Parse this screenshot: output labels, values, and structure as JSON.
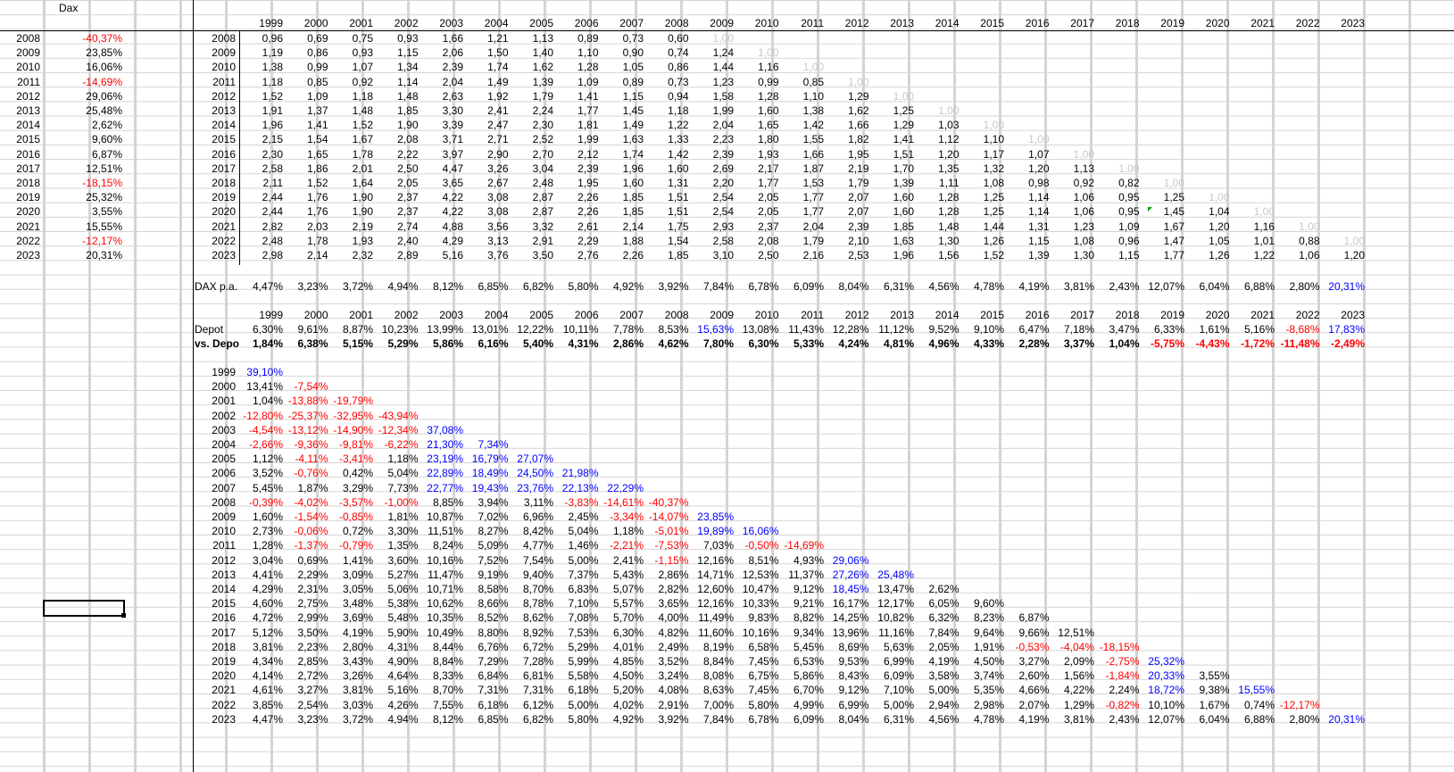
{
  "sheet_header": "Dax",
  "cursor_note_years": [
    "2008",
    "2009",
    "2010",
    "2011",
    "2012",
    "2013",
    "2014",
    "2015",
    "2016",
    "2017",
    "2018",
    "2019",
    "2020",
    "2021",
    "2022",
    "2023"
  ],
  "yearly_returns": [
    {
      "year": "2008",
      "value": "-40,37%",
      "neg": true
    },
    {
      "year": "2009",
      "value": "23,85%",
      "neg": false
    },
    {
      "year": "2010",
      "value": "16,06%",
      "neg": false
    },
    {
      "year": "2011",
      "value": "-14,69%",
      "neg": true
    },
    {
      "year": "2012",
      "value": "29,06%",
      "neg": false
    },
    {
      "year": "2013",
      "value": "25,48%",
      "neg": false
    },
    {
      "year": "2014",
      "value": "2,62%",
      "neg": false
    },
    {
      "year": "2015",
      "value": "9,60%",
      "neg": false
    },
    {
      "year": "2016",
      "value": "6,87%",
      "neg": false
    },
    {
      "year": "2017",
      "value": "12,51%",
      "neg": false
    },
    {
      "year": "2018",
      "value": "-18,15%",
      "neg": true
    },
    {
      "year": "2019",
      "value": "25,32%",
      "neg": false
    },
    {
      "year": "2020",
      "value": "3,55%",
      "neg": false
    },
    {
      "year": "2021",
      "value": "15,55%",
      "neg": false
    },
    {
      "year": "2022",
      "value": "-12,17%",
      "neg": true
    },
    {
      "year": "2023",
      "value": "20,31%",
      "neg": false
    }
  ],
  "col_years": [
    "1999",
    "2000",
    "2001",
    "2002",
    "2003",
    "2004",
    "2005",
    "2006",
    "2007",
    "2008",
    "2009",
    "2010",
    "2011",
    "2012",
    "2013",
    "2014",
    "2015",
    "2016",
    "2017",
    "2018",
    "2019",
    "2020",
    "2021",
    "2022",
    "2023"
  ],
  "factor_rows": [
    {
      "year": "2008",
      "vals": [
        "0,96",
        "0,69",
        "0,75",
        "0,93",
        "1,66",
        "1,21",
        "1,13",
        "0,89",
        "0,73",
        "0,60",
        "1,00"
      ]
    },
    {
      "year": "2009",
      "vals": [
        "1,19",
        "0,86",
        "0,93",
        "1,15",
        "2,06",
        "1,50",
        "1,40",
        "1,10",
        "0,90",
        "0,74",
        "1,24",
        "1,00"
      ]
    },
    {
      "year": "2010",
      "vals": [
        "1,38",
        "0,99",
        "1,07",
        "1,34",
        "2,39",
        "1,74",
        "1,62",
        "1,28",
        "1,05",
        "0,86",
        "1,44",
        "1,16",
        "1,00"
      ]
    },
    {
      "year": "2011",
      "vals": [
        "1,18",
        "0,85",
        "0,92",
        "1,14",
        "2,04",
        "1,49",
        "1,39",
        "1,09",
        "0,89",
        "0,73",
        "1,23",
        "0,99",
        "0,85",
        "1,00"
      ]
    },
    {
      "year": "2012",
      "vals": [
        "1,52",
        "1,09",
        "1,18",
        "1,48",
        "2,63",
        "1,92",
        "1,79",
        "1,41",
        "1,15",
        "0,94",
        "1,58",
        "1,28",
        "1,10",
        "1,29",
        "1,00"
      ]
    },
    {
      "year": "2013",
      "vals": [
        "1,91",
        "1,37",
        "1,48",
        "1,85",
        "3,30",
        "2,41",
        "2,24",
        "1,77",
        "1,45",
        "1,18",
        "1,99",
        "1,60",
        "1,38",
        "1,62",
        "1,25",
        "1,00"
      ]
    },
    {
      "year": "2014",
      "vals": [
        "1,96",
        "1,41",
        "1,52",
        "1,90",
        "3,39",
        "2,47",
        "2,30",
        "1,81",
        "1,49",
        "1,22",
        "2,04",
        "1,65",
        "1,42",
        "1,66",
        "1,29",
        "1,03",
        "1,00"
      ]
    },
    {
      "year": "2015",
      "vals": [
        "2,15",
        "1,54",
        "1,67",
        "2,08",
        "3,71",
        "2,71",
        "2,52",
        "1,99",
        "1,63",
        "1,33",
        "2,23",
        "1,80",
        "1,55",
        "1,82",
        "1,41",
        "1,12",
        "1,10",
        "1,00"
      ]
    },
    {
      "year": "2016",
      "vals": [
        "2,30",
        "1,65",
        "1,78",
        "2,22",
        "3,97",
        "2,90",
        "2,70",
        "2,12",
        "1,74",
        "1,42",
        "2,39",
        "1,93",
        "1,66",
        "1,95",
        "1,51",
        "1,20",
        "1,17",
        "1,07",
        "1,00"
      ]
    },
    {
      "year": "2017",
      "vals": [
        "2,58",
        "1,86",
        "2,01",
        "2,50",
        "4,47",
        "3,26",
        "3,04",
        "2,39",
        "1,96",
        "1,60",
        "2,69",
        "2,17",
        "1,87",
        "2,19",
        "1,70",
        "1,35",
        "1,32",
        "1,20",
        "1,13",
        "1,00"
      ]
    },
    {
      "year": "2018",
      "vals": [
        "2,11",
        "1,52",
        "1,64",
        "2,05",
        "3,65",
        "2,67",
        "2,48",
        "1,95",
        "1,60",
        "1,31",
        "2,20",
        "1,77",
        "1,53",
        "1,79",
        "1,39",
        "1,11",
        "1,08",
        "0,98",
        "0,92",
        "0,82",
        "1,00"
      ]
    },
    {
      "year": "2019",
      "vals": [
        "2,44",
        "1,76",
        "1,90",
        "2,37",
        "4,22",
        "3,08",
        "2,87",
        "2,26",
        "1,85",
        "1,51",
        "2,54",
        "2,05",
        "1,77",
        "2,07",
        "1,60",
        "1,28",
        "1,25",
        "1,14",
        "1,06",
        "0,95",
        "1,25",
        "1,00"
      ]
    },
    {
      "year": "2020",
      "vals": [
        "2,44",
        "1,76",
        "1,90",
        "2,37",
        "4,22",
        "3,08",
        "2,87",
        "2,26",
        "1,85",
        "1,51",
        "2,54",
        "2,05",
        "1,77",
        "2,07",
        "1,60",
        "1,28",
        "1,25",
        "1,14",
        "1,06",
        "0,95",
        "1,45",
        "1,04",
        "1,00"
      ]
    },
    {
      "year": "2021",
      "vals": [
        "2,82",
        "2,03",
        "2,19",
        "2,74",
        "4,88",
        "3,56",
        "3,32",
        "2,61",
        "2,14",
        "1,75",
        "2,93",
        "2,37",
        "2,04",
        "2,39",
        "1,85",
        "1,48",
        "1,44",
        "1,31",
        "1,23",
        "1,09",
        "1,67",
        "1,20",
        "1,16",
        "1,00"
      ]
    },
    {
      "year": "2022",
      "vals": [
        "2,48",
        "1,78",
        "1,93",
        "2,40",
        "4,29",
        "3,13",
        "2,91",
        "2,29",
        "1,88",
        "1,54",
        "2,58",
        "2,08",
        "1,79",
        "2,10",
        "1,63",
        "1,30",
        "1,26",
        "1,15",
        "1,08",
        "0,96",
        "1,47",
        "1,05",
        "1,01",
        "0,88",
        "1,00"
      ]
    },
    {
      "year": "2023",
      "vals": [
        "2,98",
        "2,14",
        "2,32",
        "2,89",
        "5,16",
        "3,76",
        "3,50",
        "2,76",
        "2,26",
        "1,85",
        "3,10",
        "2,50",
        "2,16",
        "2,53",
        "1,96",
        "1,56",
        "1,52",
        "1,39",
        "1,30",
        "1,15",
        "1,77",
        "1,26",
        "1,22",
        "1,06",
        "1,20"
      ]
    }
  ],
  "dax_pa": {
    "label": "DAX p.a.",
    "vals": [
      "4,47%",
      "3,23%",
      "3,72%",
      "4,94%",
      "8,12%",
      "6,85%",
      "6,82%",
      "5,80%",
      "4,92%",
      "3,92%",
      "7,84%",
      "6,78%",
      "6,09%",
      "8,04%",
      "6,31%",
      "4,56%",
      "4,78%",
      "4,19%",
      "3,81%",
      "2,43%",
      "12,07%",
      "6,04%",
      "6,88%",
      "2,80%",
      "20,31%"
    ]
  },
  "depot": {
    "label": "Depot",
    "vals": [
      "6,30%",
      "9,61%",
      "8,87%",
      "10,23%",
      "13,99%",
      "13,01%",
      "12,22%",
      "10,11%",
      "7,78%",
      "8,53%",
      "15,63%",
      "13,08%",
      "11,43%",
      "12,28%",
      "11,12%",
      "9,52%",
      "9,10%",
      "6,47%",
      "7,18%",
      "3,47%",
      "6,33%",
      "1,61%",
      "5,16%",
      "-8,68%",
      "17,83%"
    ]
  },
  "vs_depot": {
    "label": "vs. Depot",
    "vals": [
      "1,84%",
      "6,38%",
      "5,15%",
      "5,29%",
      "5,86%",
      "6,16%",
      "5,40%",
      "4,31%",
      "2,86%",
      "4,62%",
      "7,80%",
      "6,30%",
      "5,33%",
      "4,24%",
      "4,81%",
      "4,96%",
      "4,33%",
      "2,28%",
      "3,37%",
      "1,04%",
      "-5,75%",
      "-4,43%",
      "-1,72%",
      "-11,48%",
      "-2,49%"
    ]
  },
  "tri_rows": [
    {
      "year": "1999",
      "vals": [
        "39,10%"
      ]
    },
    {
      "year": "2000",
      "vals": [
        "13,41%",
        "-7,54%"
      ]
    },
    {
      "year": "2001",
      "vals": [
        "1,04%",
        "-13,88%",
        "-19,79%"
      ]
    },
    {
      "year": "2002",
      "vals": [
        "-12,80%",
        "-25,37%",
        "-32,95%",
        "-43,94%"
      ]
    },
    {
      "year": "2003",
      "vals": [
        "-4,54%",
        "-13,12%",
        "-14,90%",
        "-12,34%",
        "37,08%"
      ]
    },
    {
      "year": "2004",
      "vals": [
        "-2,66%",
        "-9,36%",
        "-9,81%",
        "-6,22%",
        "21,30%",
        "7,34%"
      ]
    },
    {
      "year": "2005",
      "vals": [
        "1,12%",
        "-4,11%",
        "-3,41%",
        "1,18%",
        "23,19%",
        "16,79%",
        "27,07%"
      ]
    },
    {
      "year": "2006",
      "vals": [
        "3,52%",
        "-0,76%",
        "0,42%",
        "5,04%",
        "22,89%",
        "18,49%",
        "24,50%",
        "21,98%"
      ]
    },
    {
      "year": "2007",
      "vals": [
        "5,45%",
        "1,87%",
        "3,29%",
        "7,73%",
        "22,77%",
        "19,43%",
        "23,76%",
        "22,13%",
        "22,29%"
      ]
    },
    {
      "year": "2008",
      "vals": [
        "-0,39%",
        "-4,02%",
        "-3,57%",
        "-1,00%",
        "8,85%",
        "3,94%",
        "3,11%",
        "-3,83%",
        "-14,61%",
        "-40,37%"
      ]
    },
    {
      "year": "2009",
      "vals": [
        "1,60%",
        "-1,54%",
        "-0,85%",
        "1,81%",
        "10,87%",
        "7,02%",
        "6,96%",
        "2,45%",
        "-3,34%",
        "-14,07%",
        "23,85%"
      ]
    },
    {
      "year": "2010",
      "vals": [
        "2,73%",
        "-0,06%",
        "0,72%",
        "3,30%",
        "11,51%",
        "8,27%",
        "8,42%",
        "5,04%",
        "1,18%",
        "-5,01%",
        "19,89%",
        "16,06%"
      ]
    },
    {
      "year": "2011",
      "vals": [
        "1,28%",
        "-1,37%",
        "-0,79%",
        "1,35%",
        "8,24%",
        "5,09%",
        "4,77%",
        "1,46%",
        "-2,21%",
        "-7,53%",
        "7,03%",
        "-0,50%",
        "-14,69%"
      ]
    },
    {
      "year": "2012",
      "vals": [
        "3,04%",
        "0,69%",
        "1,41%",
        "3,60%",
        "10,16%",
        "7,52%",
        "7,54%",
        "5,00%",
        "2,41%",
        "-1,15%",
        "12,16%",
        "8,51%",
        "4,93%",
        "29,06%"
      ]
    },
    {
      "year": "2013",
      "vals": [
        "4,41%",
        "2,29%",
        "3,09%",
        "5,27%",
        "11,47%",
        "9,19%",
        "9,40%",
        "7,37%",
        "5,43%",
        "2,86%",
        "14,71%",
        "12,53%",
        "11,37%",
        "27,26%",
        "25,48%"
      ]
    },
    {
      "year": "2014",
      "vals": [
        "4,29%",
        "2,31%",
        "3,05%",
        "5,06%",
        "10,71%",
        "8,58%",
        "8,70%",
        "6,83%",
        "5,07%",
        "2,82%",
        "12,60%",
        "10,47%",
        "9,12%",
        "18,45%",
        "13,47%",
        "2,62%"
      ]
    },
    {
      "year": "2015",
      "vals": [
        "4,60%",
        "2,75%",
        "3,48%",
        "5,38%",
        "10,62%",
        "8,66%",
        "8,78%",
        "7,10%",
        "5,57%",
        "3,65%",
        "12,16%",
        "10,33%",
        "9,21%",
        "16,17%",
        "12,17%",
        "6,05%",
        "9,60%"
      ]
    },
    {
      "year": "2016",
      "vals": [
        "4,72%",
        "2,99%",
        "3,69%",
        "5,48%",
        "10,35%",
        "8,52%",
        "8,62%",
        "7,08%",
        "5,70%",
        "4,00%",
        "11,49%",
        "9,83%",
        "8,82%",
        "14,25%",
        "10,82%",
        "6,32%",
        "8,23%",
        "6,87%"
      ]
    },
    {
      "year": "2017",
      "vals": [
        "5,12%",
        "3,50%",
        "4,19%",
        "5,90%",
        "10,49%",
        "8,80%",
        "8,92%",
        "7,53%",
        "6,30%",
        "4,82%",
        "11,60%",
        "10,16%",
        "9,34%",
        "13,96%",
        "11,16%",
        "7,84%",
        "9,64%",
        "9,66%",
        "12,51%"
      ]
    },
    {
      "year": "2018",
      "vals": [
        "3,81%",
        "2,23%",
        "2,80%",
        "4,31%",
        "8,44%",
        "6,76%",
        "6,72%",
        "5,29%",
        "4,01%",
        "2,49%",
        "8,19%",
        "6,58%",
        "5,45%",
        "8,69%",
        "5,63%",
        "2,05%",
        "1,91%",
        "-0,53%",
        "-4,04%",
        "-18,15%"
      ]
    },
    {
      "year": "2019",
      "vals": [
        "4,34%",
        "2,85%",
        "3,43%",
        "4,90%",
        "8,84%",
        "7,29%",
        "7,28%",
        "5,99%",
        "4,85%",
        "3,52%",
        "8,84%",
        "7,45%",
        "6,53%",
        "9,53%",
        "6,99%",
        "4,19%",
        "4,50%",
        "3,27%",
        "2,09%",
        "-2,75%",
        "25,32%"
      ]
    },
    {
      "year": "2020",
      "vals": [
        "4,14%",
        "2,72%",
        "3,26%",
        "4,64%",
        "8,33%",
        "6,84%",
        "6,81%",
        "5,58%",
        "4,50%",
        "3,24%",
        "8,08%",
        "6,75%",
        "5,86%",
        "8,43%",
        "6,09%",
        "3,58%",
        "3,74%",
        "2,60%",
        "1,56%",
        "-1,84%",
        "20,33%",
        "3,55%"
      ]
    },
    {
      "year": "2021",
      "vals": [
        "4,61%",
        "3,27%",
        "3,81%",
        "5,16%",
        "8,70%",
        "7,31%",
        "7,31%",
        "6,18%",
        "5,20%",
        "4,08%",
        "8,63%",
        "7,45%",
        "6,70%",
        "9,12%",
        "7,10%",
        "5,00%",
        "5,35%",
        "4,66%",
        "4,22%",
        "2,24%",
        "18,72%",
        "9,38%",
        "15,55%"
      ]
    },
    {
      "year": "2022",
      "vals": [
        "3,85%",
        "2,54%",
        "3,03%",
        "4,26%",
        "7,55%",
        "6,18%",
        "6,12%",
        "5,00%",
        "4,02%",
        "2,91%",
        "7,00%",
        "5,80%",
        "4,99%",
        "6,99%",
        "5,00%",
        "2,94%",
        "2,98%",
        "2,07%",
        "1,29%",
        "-0,82%",
        "10,10%",
        "1,67%",
        "0,74%",
        "-12,17%"
      ]
    },
    {
      "year": "2023",
      "vals": [
        "4,47%",
        "3,23%",
        "3,72%",
        "4,94%",
        "8,12%",
        "6,85%",
        "6,82%",
        "5,80%",
        "4,92%",
        "3,92%",
        "7,84%",
        "6,78%",
        "6,09%",
        "8,04%",
        "6,31%",
        "4,56%",
        "4,78%",
        "4,19%",
        "3,81%",
        "2,43%",
        "12,07%",
        "6,04%",
        "6,88%",
        "2,80%",
        "20,31%"
      ]
    }
  ],
  "colors": {
    "negative": "#ff0000",
    "blue_highlight": "#0000ff",
    "faint": "#c8c8c8",
    "gridline": "#d4d4d4"
  }
}
